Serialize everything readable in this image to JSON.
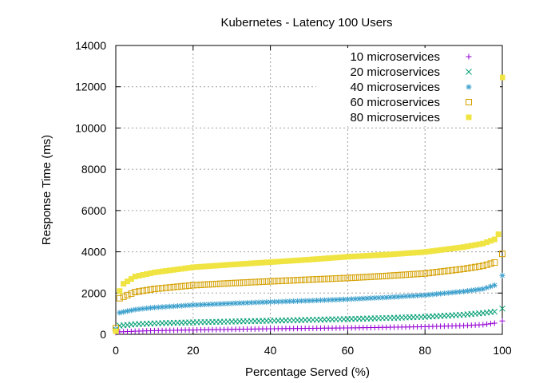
{
  "chart_data": {
    "type": "scatter",
    "title": "Kubernetes - Latency 100 Users",
    "xlabel": "Percentage Served (%)",
    "ylabel": "Response Time (ms)",
    "xlim": [
      0,
      100
    ],
    "ylim": [
      0,
      14000
    ],
    "x_ticks": [
      0,
      20,
      40,
      60,
      80,
      100
    ],
    "y_ticks": [
      0,
      2000,
      4000,
      6000,
      8000,
      10000,
      12000,
      14000
    ],
    "x_tick_labels": [
      "0",
      "20",
      "40",
      "60",
      "80",
      "100"
    ],
    "y_tick_labels": [
      "0",
      "2000",
      "4000",
      "6000",
      "8000",
      "10000",
      "12000",
      "14000"
    ],
    "grid": true,
    "legend_position": "top-right",
    "series": [
      {
        "name": "10 microservices",
        "marker": "plus",
        "color": "#9400d3",
        "points": [
          [
            0,
            80
          ],
          [
            1,
            120
          ],
          [
            5,
            150
          ],
          [
            10,
            180
          ],
          [
            20,
            210
          ],
          [
            30,
            240
          ],
          [
            40,
            270
          ],
          [
            50,
            290
          ],
          [
            60,
            310
          ],
          [
            70,
            340
          ],
          [
            80,
            370
          ],
          [
            90,
            420
          ],
          [
            95,
            470
          ],
          [
            98,
            540
          ],
          [
            100,
            650
          ]
        ]
      },
      {
        "name": "20 microservices",
        "marker": "x",
        "color": "#009e73",
        "points": [
          [
            0,
            200
          ],
          [
            1,
            420
          ],
          [
            5,
            490
          ],
          [
            10,
            530
          ],
          [
            20,
            580
          ],
          [
            30,
            620
          ],
          [
            40,
            660
          ],
          [
            50,
            700
          ],
          [
            60,
            740
          ],
          [
            70,
            790
          ],
          [
            80,
            850
          ],
          [
            90,
            950
          ],
          [
            95,
            1030
          ],
          [
            98,
            1100
          ],
          [
            100,
            1250
          ]
        ]
      },
      {
        "name": "40 microservices",
        "marker": "star",
        "color": "#3a9fcc",
        "points": [
          [
            0,
            250
          ],
          [
            1,
            1050
          ],
          [
            5,
            1200
          ],
          [
            10,
            1300
          ],
          [
            20,
            1420
          ],
          [
            30,
            1500
          ],
          [
            40,
            1570
          ],
          [
            50,
            1630
          ],
          [
            60,
            1700
          ],
          [
            70,
            1790
          ],
          [
            80,
            1900
          ],
          [
            90,
            2080
          ],
          [
            95,
            2200
          ],
          [
            98,
            2380
          ],
          [
            100,
            2850
          ]
        ]
      },
      {
        "name": "60 microservices",
        "marker": "open-square",
        "color": "#d4a000",
        "points": [
          [
            0,
            300
          ],
          [
            1,
            1750
          ],
          [
            5,
            2050
          ],
          [
            10,
            2200
          ],
          [
            20,
            2380
          ],
          [
            30,
            2480
          ],
          [
            40,
            2570
          ],
          [
            50,
            2650
          ],
          [
            60,
            2730
          ],
          [
            70,
            2830
          ],
          [
            80,
            2950
          ],
          [
            90,
            3170
          ],
          [
            95,
            3320
          ],
          [
            98,
            3480
          ],
          [
            100,
            3900
          ]
        ]
      },
      {
        "name": "80 microservices",
        "marker": "filled-square",
        "color": "#f0e442",
        "points": [
          [
            0,
            150
          ],
          [
            1,
            2100
          ],
          [
            2,
            2450
          ],
          [
            5,
            2800
          ],
          [
            10,
            3000
          ],
          [
            20,
            3250
          ],
          [
            30,
            3380
          ],
          [
            40,
            3500
          ],
          [
            50,
            3620
          ],
          [
            60,
            3760
          ],
          [
            70,
            3860
          ],
          [
            80,
            3990
          ],
          [
            90,
            4230
          ],
          [
            95,
            4400
          ],
          [
            98,
            4600
          ],
          [
            99,
            4850
          ],
          [
            100,
            12450
          ]
        ]
      }
    ]
  }
}
